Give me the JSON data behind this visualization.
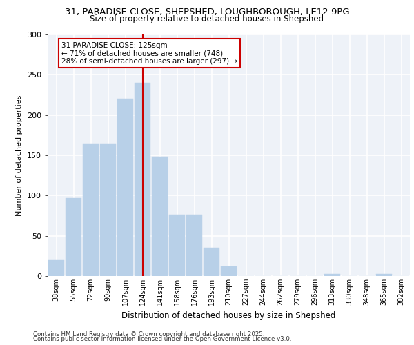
{
  "title_line1": "31, PARADISE CLOSE, SHEPSHED, LOUGHBOROUGH, LE12 9PG",
  "title_line2": "Size of property relative to detached houses in Shepshed",
  "xlabel": "Distribution of detached houses by size in Shepshed",
  "ylabel": "Number of detached properties",
  "bar_labels": [
    "38sqm",
    "55sqm",
    "72sqm",
    "90sqm",
    "107sqm",
    "124sqm",
    "141sqm",
    "158sqm",
    "176sqm",
    "193sqm",
    "210sqm",
    "227sqm",
    "244sqm",
    "262sqm",
    "279sqm",
    "296sqm",
    "313sqm",
    "330sqm",
    "348sqm",
    "365sqm",
    "382sqm"
  ],
  "bar_values": [
    20,
    97,
    165,
    165,
    220,
    240,
    148,
    76,
    76,
    35,
    12,
    0,
    0,
    0,
    0,
    0,
    3,
    0,
    0,
    3,
    0
  ],
  "bar_color": "#b8d0e8",
  "background_color": "#eef2f8",
  "grid_color": "#ffffff",
  "annotation_text": "31 PARADISE CLOSE: 125sqm\n← 71% of detached houses are smaller (748)\n28% of semi-detached houses are larger (297) →",
  "annotation_box_color": "#ffffff",
  "annotation_box_edge": "#cc0000",
  "vline_color": "#cc0000",
  "vline_x_index": 5.0,
  "ylim": [
    0,
    300
  ],
  "yticks": [
    0,
    50,
    100,
    150,
    200,
    250,
    300
  ],
  "footer_line1": "Contains HM Land Registry data © Crown copyright and database right 2025.",
  "footer_line2": "Contains public sector information licensed under the Open Government Licence v3.0."
}
